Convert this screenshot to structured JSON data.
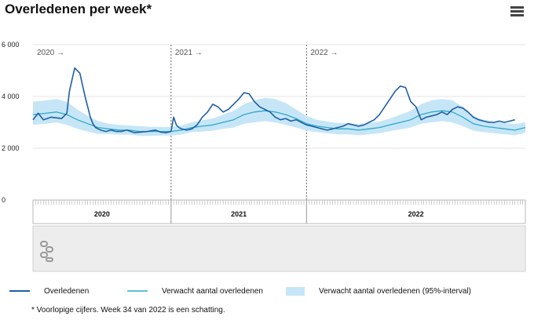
{
  "header": {
    "title": "Overledenen per week*",
    "menu_icon": "hamburger-menu-icon"
  },
  "chart_data": {
    "type": "line",
    "title": "Overledenen per week*",
    "xlabel": "",
    "ylabel": "",
    "ylim": [
      0,
      6000
    ],
    "yticks": [
      0,
      2000,
      4000,
      6000
    ],
    "ytick_labels": [
      "0",
      "2 000",
      "4 000",
      "6 000"
    ],
    "year_labels": [
      "2020",
      "2021",
      "2022"
    ],
    "period_labels": [
      "2020 →",
      "2021 →",
      "2022 →"
    ],
    "week_range": [
      1,
      190
    ],
    "year_starts": [
      1,
      54,
      106
    ],
    "x_end": 190,
    "colors": {
      "observed": "#1f5fa6",
      "expected": "#2fa8c9",
      "interval": "#c6e6f7"
    },
    "series": [
      {
        "name": "Overledenen",
        "x": [
          1,
          3,
          5,
          8,
          12,
          14,
          15,
          17,
          19,
          21,
          22,
          23,
          24,
          25,
          26,
          27,
          29,
          31,
          33,
          35,
          37,
          40,
          45,
          48,
          50,
          52,
          54,
          55,
          56,
          57,
          58,
          60,
          62,
          64,
          66,
          68,
          70,
          72,
          74,
          76,
          78,
          80,
          82,
          84,
          86,
          88,
          90,
          92,
          94,
          96,
          98,
          100,
          102,
          104,
          105,
          106,
          108,
          110,
          112,
          114,
          116,
          118,
          120,
          122,
          124,
          126,
          128,
          130,
          132,
          134,
          136,
          138,
          140,
          142,
          144,
          146,
          148,
          150,
          152,
          154,
          156,
          158,
          160,
          162,
          164,
          166,
          168,
          170,
          172,
          174,
          176,
          178,
          180,
          182,
          184,
          186
        ],
        "values": [
          3100,
          3350,
          3100,
          3200,
          3150,
          3350,
          4200,
          5100,
          4900,
          4000,
          3600,
          3200,
          2950,
          2800,
          2750,
          2700,
          2650,
          2700,
          2650,
          2650,
          2700,
          2600,
          2650,
          2700,
          2620,
          2600,
          2650,
          3200,
          2900,
          2800,
          2750,
          2700,
          2750,
          2900,
          3200,
          3400,
          3700,
          3600,
          3400,
          3500,
          3700,
          3900,
          4150,
          4100,
          3800,
          3600,
          3500,
          3400,
          3200,
          3100,
          3150,
          3050,
          3100,
          3000,
          2950,
          2900,
          2850,
          2800,
          2750,
          2700,
          2750,
          2800,
          2850,
          2950,
          2900,
          2850,
          2900,
          3000,
          3100,
          3300,
          3600,
          3900,
          4200,
          4400,
          4350,
          3800,
          3600,
          3100,
          3200,
          3250,
          3300,
          3400,
          3300,
          3500,
          3600,
          3550,
          3400,
          3200,
          3100,
          3050,
          3000,
          3000,
          3050,
          3000,
          3050,
          3100
        ]
      },
      {
        "name": "Verwacht aantal overledenen",
        "x": [
          1,
          6,
          10,
          14,
          18,
          22,
          26,
          30,
          34,
          38,
          42,
          46,
          50,
          54,
          58,
          62,
          66,
          70,
          74,
          78,
          82,
          86,
          90,
          94,
          98,
          102,
          106,
          110,
          114,
          118,
          122,
          126,
          130,
          134,
          138,
          142,
          146,
          150,
          154,
          158,
          162,
          166,
          170,
          174,
          178,
          182,
          186,
          190
        ],
        "values": [
          3300,
          3350,
          3400,
          3300,
          3100,
          2950,
          2800,
          2750,
          2700,
          2700,
          2650,
          2650,
          2650,
          2650,
          2700,
          2800,
          2850,
          2900,
          3000,
          3100,
          3300,
          3400,
          3450,
          3400,
          3300,
          3150,
          2950,
          2850,
          2800,
          2750,
          2750,
          2700,
          2750,
          2800,
          2900,
          3000,
          3100,
          3300,
          3400,
          3450,
          3400,
          3200,
          2950,
          2850,
          2800,
          2750,
          2700,
          2800
        ]
      },
      {
        "name": "Verwacht aantal overledenen (95%-interval)",
        "x": [
          1,
          6,
          10,
          14,
          18,
          22,
          26,
          30,
          34,
          38,
          42,
          46,
          50,
          54,
          58,
          62,
          66,
          70,
          74,
          78,
          82,
          86,
          90,
          94,
          98,
          102,
          106,
          110,
          114,
          118,
          122,
          126,
          130,
          134,
          138,
          142,
          146,
          150,
          154,
          158,
          162,
          166,
          170,
          174,
          178,
          182,
          186,
          190
        ],
        "upper": [
          3800,
          3850,
          3900,
          3800,
          3500,
          3250,
          3050,
          2950,
          2900,
          2880,
          2850,
          2830,
          2820,
          2820,
          2880,
          3000,
          3080,
          3150,
          3300,
          3450,
          3700,
          3850,
          3950,
          3900,
          3750,
          3500,
          3250,
          3100,
          3030,
          2980,
          2970,
          2930,
          2980,
          3030,
          3150,
          3300,
          3450,
          3700,
          3850,
          3900,
          3850,
          3600,
          3250,
          3100,
          3030,
          2980,
          2930,
          3000
        ],
        "lower": [
          2900,
          2950,
          3000,
          2900,
          2750,
          2650,
          2550,
          2550,
          2520,
          2520,
          2480,
          2480,
          2490,
          2490,
          2530,
          2620,
          2650,
          2680,
          2750,
          2800,
          2950,
          3000,
          3050,
          3000,
          2900,
          2800,
          2680,
          2620,
          2580,
          2540,
          2540,
          2500,
          2540,
          2580,
          2660,
          2730,
          2800,
          2950,
          3000,
          3050,
          3000,
          2850,
          2680,
          2620,
          2580,
          2540,
          2500,
          2600
        ]
      }
    ],
    "legend": [
      "Overledenen",
      "Verwacht aantal overledenen",
      "Verwacht aantal overledenen (95%-interval)"
    ],
    "footnote": "* Voorlopige cijfers. Week 34 van 2022 is een schatting.",
    "logo_icon": "cbs-logo-icon"
  }
}
